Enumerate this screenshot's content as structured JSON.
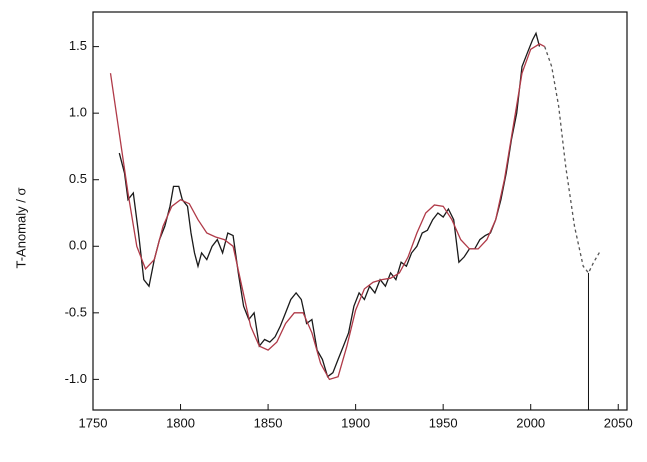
{
  "chart_data": {
    "type": "line",
    "ylabel": "T-Anomaly / σ",
    "xlim": [
      1750,
      2055
    ],
    "ylim": [
      -1.23,
      1.76
    ],
    "xticks": [
      1750,
      1800,
      1850,
      1900,
      1950,
      2000,
      2050
    ],
    "yticks": [
      {
        "value": -1.0,
        "label": "-1.0"
      },
      -0.5,
      {
        "value": 0.0,
        "label": "0.0"
      },
      0.5,
      {
        "value": 1.0,
        "label": "1.0"
      },
      1.5
    ],
    "series": [
      {
        "color": "#1a1a1a",
        "dash": false,
        "x": [
          1765,
          1768,
          1770,
          1773,
          1776,
          1779,
          1782,
          1785,
          1788,
          1791,
          1794,
          1796,
          1799,
          1801,
          1804,
          1806,
          1808,
          1810,
          1812,
          1815,
          1818,
          1821,
          1824,
          1827,
          1830,
          1833,
          1836,
          1839,
          1842,
          1845,
          1848,
          1851,
          1854,
          1857,
          1860,
          1863,
          1866,
          1869,
          1872,
          1875,
          1878,
          1881,
          1884,
          1887,
          1890,
          1893,
          1896,
          1899,
          1902,
          1905,
          1908,
          1911,
          1914,
          1917,
          1920,
          1923,
          1926,
          1929,
          1932,
          1935,
          1938,
          1941,
          1944,
          1947,
          1950,
          1953,
          1956,
          1959,
          1962,
          1965,
          1968,
          1971,
          1974,
          1977,
          1980,
          1983,
          1986,
          1989,
          1992,
          1995,
          1998,
          2001,
          2003,
          2005
        ],
        "values": [
          0.7,
          0.55,
          0.35,
          0.4,
          0.1,
          -0.25,
          -0.3,
          -0.1,
          0.05,
          0.15,
          0.3,
          0.45,
          0.45,
          0.35,
          0.3,
          0.1,
          -0.05,
          -0.15,
          -0.05,
          -0.1,
          0.0,
          0.05,
          -0.05,
          0.1,
          0.08,
          -0.2,
          -0.45,
          -0.55,
          -0.5,
          -0.75,
          -0.7,
          -0.72,
          -0.68,
          -0.6,
          -0.5,
          -0.4,
          -0.35,
          -0.4,
          -0.58,
          -0.55,
          -0.78,
          -0.85,
          -0.98,
          -0.95,
          -0.85,
          -0.75,
          -0.65,
          -0.45,
          -0.35,
          -0.4,
          -0.3,
          -0.35,
          -0.25,
          -0.3,
          -0.2,
          -0.25,
          -0.12,
          -0.15,
          -0.05,
          0.0,
          0.1,
          0.12,
          0.2,
          0.25,
          0.22,
          0.28,
          0.2,
          -0.12,
          -0.08,
          -0.02,
          -0.02,
          0.05,
          0.08,
          0.1,
          0.2,
          0.35,
          0.55,
          0.8,
          1.0,
          1.35,
          1.45,
          1.55,
          1.6,
          1.5
        ]
      },
      {
        "color": "#b03a48",
        "dash": false,
        "x": [
          1760,
          1770,
          1775,
          1780,
          1785,
          1790,
          1795,
          1800,
          1805,
          1810,
          1815,
          1820,
          1825,
          1830,
          1835,
          1840,
          1845,
          1850,
          1855,
          1860,
          1865,
          1870,
          1875,
          1880,
          1885,
          1890,
          1895,
          1900,
          1905,
          1910,
          1915,
          1920,
          1925,
          1930,
          1935,
          1940,
          1945,
          1950,
          1955,
          1960,
          1965,
          1970,
          1975,
          1980,
          1985,
          1990,
          1995,
          2000,
          2005,
          2008
        ],
        "values": [
          1.3,
          0.4,
          0.0,
          -0.17,
          -0.1,
          0.15,
          0.3,
          0.35,
          0.32,
          0.2,
          0.1,
          0.07,
          0.05,
          0.0,
          -0.3,
          -0.6,
          -0.75,
          -0.78,
          -0.72,
          -0.58,
          -0.5,
          -0.5,
          -0.65,
          -0.88,
          -1.0,
          -0.98,
          -0.75,
          -0.48,
          -0.32,
          -0.27,
          -0.25,
          -0.24,
          -0.2,
          -0.08,
          0.1,
          0.25,
          0.31,
          0.3,
          0.2,
          0.05,
          -0.02,
          -0.02,
          0.05,
          0.2,
          0.5,
          0.9,
          1.3,
          1.48,
          1.52,
          1.5
        ]
      },
      {
        "color": "#555555",
        "dash": true,
        "x": [
          2008,
          2012,
          2016,
          2020,
          2025,
          2030,
          2033,
          2036,
          2040
        ],
        "values": [
          1.5,
          1.35,
          1.05,
          0.6,
          0.15,
          -0.15,
          -0.2,
          -0.12,
          -0.03
        ]
      }
    ],
    "vline_x": 2033
  }
}
